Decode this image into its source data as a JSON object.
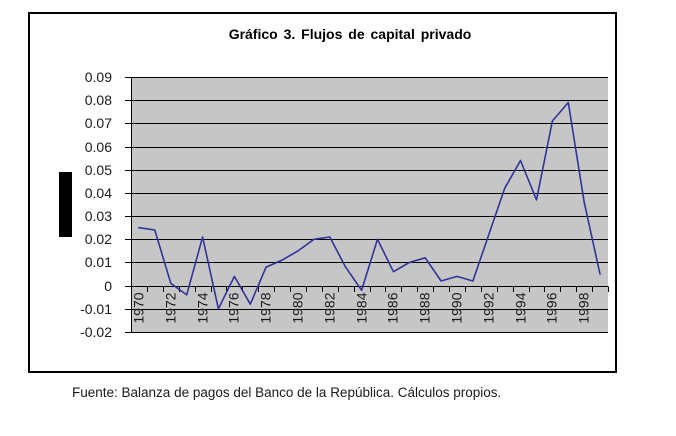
{
  "page": {
    "source_note": "Fuente: Balanza de pagos del Banco de la República. Cálculos propios."
  },
  "chart_data": {
    "type": "line",
    "title": "Gráfico 3. Flujos de capital privado",
    "x": [
      1970,
      1971,
      1972,
      1973,
      1974,
      1975,
      1976,
      1977,
      1978,
      1979,
      1980,
      1981,
      1982,
      1983,
      1984,
      1985,
      1986,
      1987,
      1988,
      1989,
      1990,
      1991,
      1992,
      1993,
      1994,
      1995,
      1996,
      1997,
      1998,
      1999
    ],
    "series": [
      {
        "name": "Flujos de capital privado",
        "values": [
          0.025,
          0.024,
          0.001,
          -0.004,
          0.021,
          -0.01,
          0.004,
          -0.008,
          0.008,
          0.011,
          0.015,
          0.02,
          0.021,
          0.008,
          -0.002,
          0.02,
          0.006,
          0.01,
          0.012,
          0.002,
          0.004,
          0.002,
          0.022,
          0.042,
          0.054,
          0.037,
          0.071,
          0.079,
          0.036,
          0.005
        ]
      }
    ],
    "xlabel": "",
    "ylabel": "",
    "ylim": [
      -0.02,
      0.09
    ],
    "ytick_step": 0.01,
    "ytick_labels": [
      "0.09",
      "0.08",
      "0.07",
      "0.06",
      "0.05",
      "0.04",
      "0.03",
      "0.02",
      "0.01",
      "0",
      "-0.01",
      "-0.02"
    ],
    "xtick_labels": [
      "1970",
      "1972",
      "1974",
      "1976",
      "1978",
      "1980",
      "1982",
      "1984",
      "1986",
      "1988",
      "1990",
      "1992",
      "1994",
      "1996",
      "1998"
    ],
    "grid": true,
    "legend": "none",
    "colors": {
      "line": "#333399",
      "plot_background": "#c6c6c6",
      "gridline": "#000000",
      "axis": "#000000",
      "text": "#1a1a1a",
      "frame_border": "#000000",
      "redacted_block": "#000000"
    }
  }
}
